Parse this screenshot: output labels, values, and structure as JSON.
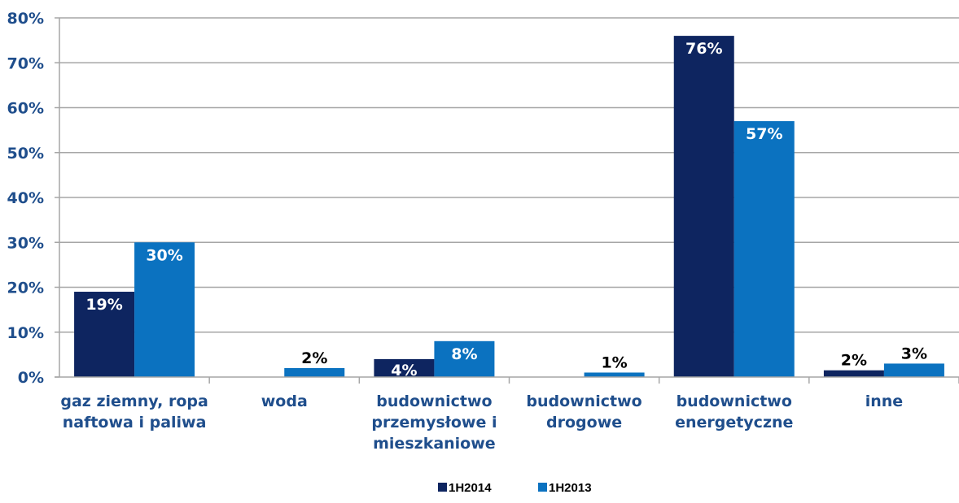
{
  "chart_data": {
    "type": "bar",
    "categories": [
      [
        "gaz ziemny, ropa",
        "naftowa i paliwa"
      ],
      [
        "woda"
      ],
      [
        "budownictwo",
        "przemysłowe i",
        "mieszkaniowe"
      ],
      [
        "budownictwo",
        "drogowe"
      ],
      [
        "budownictwo",
        "energetyczne"
      ],
      [
        "inne"
      ]
    ],
    "series": [
      {
        "name": "1H2014",
        "color": "#0e2560",
        "values": [
          19,
          0,
          4,
          0,
          76,
          1.5
        ],
        "labels": [
          "19%",
          "",
          "4%",
          "",
          "76%",
          "2%"
        ],
        "label_colors": [
          "#ffffff",
          "",
          "#ffffff",
          "",
          "#ffffff",
          "#000000"
        ]
      },
      {
        "name": "1H2013",
        "color": "#0b72c0",
        "values": [
          30,
          2,
          8,
          1,
          57,
          3
        ],
        "labels": [
          "30%",
          "2%",
          "8%",
          "1%",
          "57%",
          "3%"
        ],
        "label_colors": [
          "#ffffff",
          "#000000",
          "#ffffff",
          "#000000",
          "#ffffff",
          "#000000"
        ]
      }
    ],
    "yticks": [
      "0%",
      "10%",
      "20%",
      "30%",
      "40%",
      "50%",
      "60%",
      "70%",
      "80%"
    ],
    "ylim": [
      0,
      80
    ],
    "grid": true,
    "legend_position": "bottom",
    "axis_text_color": "#1f4e8c",
    "gridline_color": "#a6a6a6"
  }
}
